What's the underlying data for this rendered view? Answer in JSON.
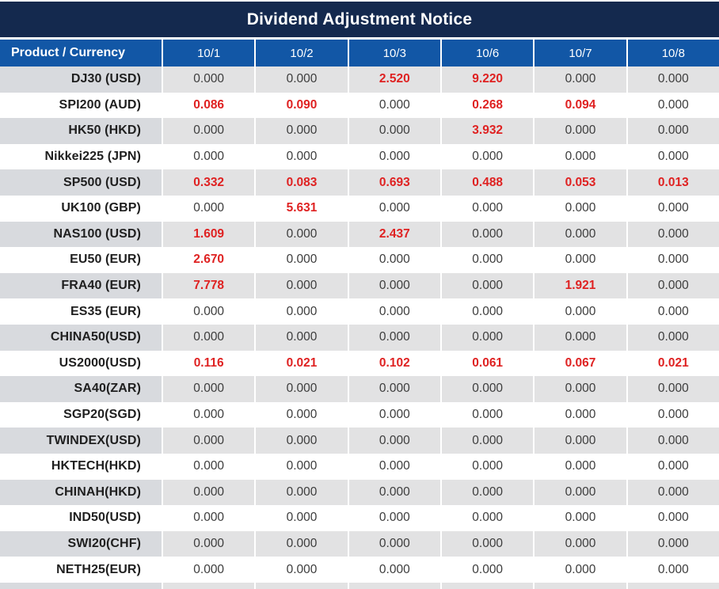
{
  "title": "Dividend Adjustment Notice",
  "colors": {
    "title_bar_bg": "#14294e",
    "header_row_bg": "#1257a6",
    "highlight_red": "#df2222",
    "value_text": "#3c3c3c",
    "product_text": "#1f1f1f",
    "striped_product_bg": "#d8dade",
    "striped_value_bg": "#e2e2e3"
  },
  "chart_data": {
    "type": "table",
    "title": "Dividend Adjustment Notice",
    "columns": [
      "Product / Currency",
      "10/1",
      "10/2",
      "10/3",
      "10/6",
      "10/7",
      "10/8"
    ],
    "rows": [
      {
        "product": "DJ30 (USD)",
        "values": [
          "0.000",
          "0.000",
          "2.520",
          "9.220",
          "0.000",
          "0.000"
        ]
      },
      {
        "product": "SPI200 (AUD)",
        "values": [
          "0.086",
          "0.090",
          "0.000",
          "0.268",
          "0.094",
          "0.000"
        ]
      },
      {
        "product": "HK50 (HKD)",
        "values": [
          "0.000",
          "0.000",
          "0.000",
          "3.932",
          "0.000",
          "0.000"
        ]
      },
      {
        "product": "Nikkei225 (JPN)",
        "values": [
          "0.000",
          "0.000",
          "0.000",
          "0.000",
          "0.000",
          "0.000"
        ]
      },
      {
        "product": "SP500 (USD)",
        "values": [
          "0.332",
          "0.083",
          "0.693",
          "0.488",
          "0.053",
          "0.013"
        ]
      },
      {
        "product": "UK100 (GBP)",
        "values": [
          "0.000",
          "5.631",
          "0.000",
          "0.000",
          "0.000",
          "0.000"
        ]
      },
      {
        "product": "NAS100 (USD)",
        "values": [
          "1.609",
          "0.000",
          "2.437",
          "0.000",
          "0.000",
          "0.000"
        ]
      },
      {
        "product": "EU50 (EUR)",
        "values": [
          "2.670",
          "0.000",
          "0.000",
          "0.000",
          "0.000",
          "0.000"
        ]
      },
      {
        "product": "FRA40 (EUR)",
        "values": [
          "7.778",
          "0.000",
          "0.000",
          "0.000",
          "1.921",
          "0.000"
        ]
      },
      {
        "product": "ES35 (EUR)",
        "values": [
          "0.000",
          "0.000",
          "0.000",
          "0.000",
          "0.000",
          "0.000"
        ]
      },
      {
        "product": "CHINA50(USD)",
        "values": [
          "0.000",
          "0.000",
          "0.000",
          "0.000",
          "0.000",
          "0.000"
        ]
      },
      {
        "product": "US2000(USD)",
        "values": [
          "0.116",
          "0.021",
          "0.102",
          "0.061",
          "0.067",
          "0.021"
        ]
      },
      {
        "product": "SA40(ZAR)",
        "values": [
          "0.000",
          "0.000",
          "0.000",
          "0.000",
          "0.000",
          "0.000"
        ]
      },
      {
        "product": "SGP20(SGD)",
        "values": [
          "0.000",
          "0.000",
          "0.000",
          "0.000",
          "0.000",
          "0.000"
        ]
      },
      {
        "product": "TWINDEX(USD)",
        "values": [
          "0.000",
          "0.000",
          "0.000",
          "0.000",
          "0.000",
          "0.000"
        ]
      },
      {
        "product": "HKTECH(HKD)",
        "values": [
          "0.000",
          "0.000",
          "0.000",
          "0.000",
          "0.000",
          "0.000"
        ]
      },
      {
        "product": "CHINAH(HKD)",
        "values": [
          "0.000",
          "0.000",
          "0.000",
          "0.000",
          "0.000",
          "0.000"
        ]
      },
      {
        "product": "IND50(USD)",
        "values": [
          "0.000",
          "0.000",
          "0.000",
          "0.000",
          "0.000",
          "0.000"
        ]
      },
      {
        "product": "SWI20(CHF)",
        "values": [
          "0.000",
          "0.000",
          "0.000",
          "0.000",
          "0.000",
          "0.000"
        ]
      },
      {
        "product": "NETH25(EUR)",
        "values": [
          "0.000",
          "0.000",
          "0.000",
          "0.000",
          "0.000",
          "0.000"
        ]
      }
    ],
    "layout_hints": {
      "stripe_pattern": "odd rows shaded gray, starting with first data row",
      "nonzero_values_highlighted_red": true
    }
  }
}
